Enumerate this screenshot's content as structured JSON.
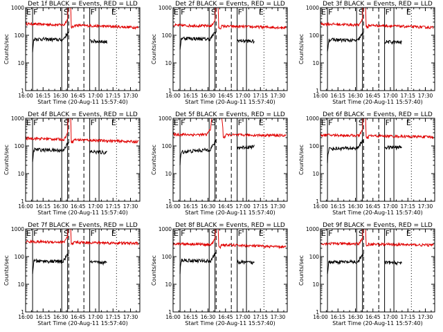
{
  "chart_data": {
    "type": "line",
    "panel_count": 9,
    "x_axis": {
      "label": "Start Time (20-Aug-11 15:57:40)",
      "range": [
        "16:00",
        "17:38"
      ],
      "ticks": [
        "16:00",
        "16:15",
        "16:30",
        "16:45",
        "17:00",
        "17:15",
        "17:30"
      ]
    },
    "y_axis": {
      "label": "Counts/sec",
      "scale": "log",
      "range": [
        1,
        1000
      ],
      "ticks": [
        "1",
        "10",
        "100",
        "1000"
      ]
    },
    "series_colors": {
      "events": "#000000",
      "lld": "#e00000"
    },
    "markers": {
      "labels": [
        "E",
        "F",
        "S",
        "F",
        "E"
      ],
      "solid_times": [
        "16:06",
        "16:31",
        "16:36",
        "16:55",
        "17:03"
      ],
      "dashed_times": [
        "16:37",
        "16:50"
      ],
      "dotted_times": [
        "17:18"
      ]
    },
    "panels": [
      {
        "title": "Det 1f BLACK = Events, RED = LLD",
        "events": {
          "from": "16:06",
          "to": "17:10",
          "first_level": 75,
          "end_level": 58,
          "cut_start": "16:37",
          "cut_end": "16:55"
        },
        "lld": {
          "level_start": 260,
          "level_end": 190,
          "spike_start": "16:36",
          "spike_end": "16:39",
          "spike_peak": 1300
        }
      },
      {
        "title": "Det 2f BLACK = Events, RED = LLD",
        "events": {
          "from": "16:06",
          "to": "17:10",
          "first_level": 80,
          "end_level": 60,
          "cut_start": "16:37",
          "cut_end": "16:55"
        },
        "lld": {
          "level_start": 230,
          "level_end": 190,
          "spike_start": "16:36",
          "spike_end": "16:39",
          "spike_peak": 1300
        }
      },
      {
        "title": "Det 3f BLACK = Events, RED = LLD",
        "events": {
          "from": "16:06",
          "to": "17:10",
          "first_level": 70,
          "end_level": 55,
          "cut_start": "16:37",
          "cut_end": "16:55"
        },
        "lld": {
          "level_start": 260,
          "level_end": 190,
          "spike_start": "16:36",
          "spike_end": "16:39",
          "spike_peak": 1300
        }
      },
      {
        "title": "Det 4f BLACK = Events, RED = LLD",
        "events": {
          "from": "16:06",
          "to": "17:10",
          "first_level": 75,
          "end_level": 58,
          "cut_start": "16:37",
          "cut_end": "16:55"
        },
        "lld": {
          "level_start": 190,
          "level_end": 140,
          "spike_start": "16:36",
          "spike_end": "16:39",
          "spike_peak": 1300
        }
      },
      {
        "title": "Det 5f BLACK = Events, RED = LLD",
        "events": {
          "from": "16:06",
          "to": "17:10",
          "first_level": 60,
          "end_level": 95,
          "cut_start": "16:37",
          "cut_end": "16:55"
        },
        "lld": {
          "level_start": 260,
          "level_end": 240,
          "spike_start": "16:32",
          "spike_end": "16:43",
          "spike_peak": 1100
        }
      },
      {
        "title": "Det 6f BLACK = Events, RED = LLD",
        "events": {
          "from": "16:06",
          "to": "17:10",
          "first_level": 80,
          "end_level": 90,
          "cut_start": "16:37",
          "cut_end": "16:55"
        },
        "lld": {
          "level_start": 250,
          "level_end": 210,
          "spike_start": "16:36",
          "spike_end": "16:39",
          "spike_peak": 1300
        }
      },
      {
        "title": "Det 7f BLACK = Events, RED = LLD",
        "events": {
          "from": "16:06",
          "to": "17:10",
          "first_level": 70,
          "end_level": 60,
          "cut_start": "16:37",
          "cut_end": "16:55"
        },
        "lld": {
          "level_start": 350,
          "level_end": 300,
          "spike_start": "16:36",
          "spike_end": "16:39",
          "spike_peak": 1300
        }
      },
      {
        "title": "Det 8f BLACK = Events, RED = LLD",
        "events": {
          "from": "16:06",
          "to": "17:10",
          "first_level": 75,
          "end_level": 60,
          "cut_start": "16:37",
          "cut_end": "16:55"
        },
        "lld": {
          "level_start": 300,
          "level_end": 220,
          "spike_start": "16:36",
          "spike_end": "16:39",
          "spike_peak": 1300
        }
      },
      {
        "title": "Det 9f BLACK = Events, RED = LLD",
        "events": {
          "from": "16:06",
          "to": "17:10",
          "first_level": 65,
          "end_level": 60,
          "cut_start": "16:37",
          "cut_end": "16:55"
        },
        "lld": {
          "level_start": 300,
          "level_end": 260,
          "spike_start": "16:36",
          "spike_end": "16:39",
          "spike_peak": 1300
        }
      }
    ]
  }
}
